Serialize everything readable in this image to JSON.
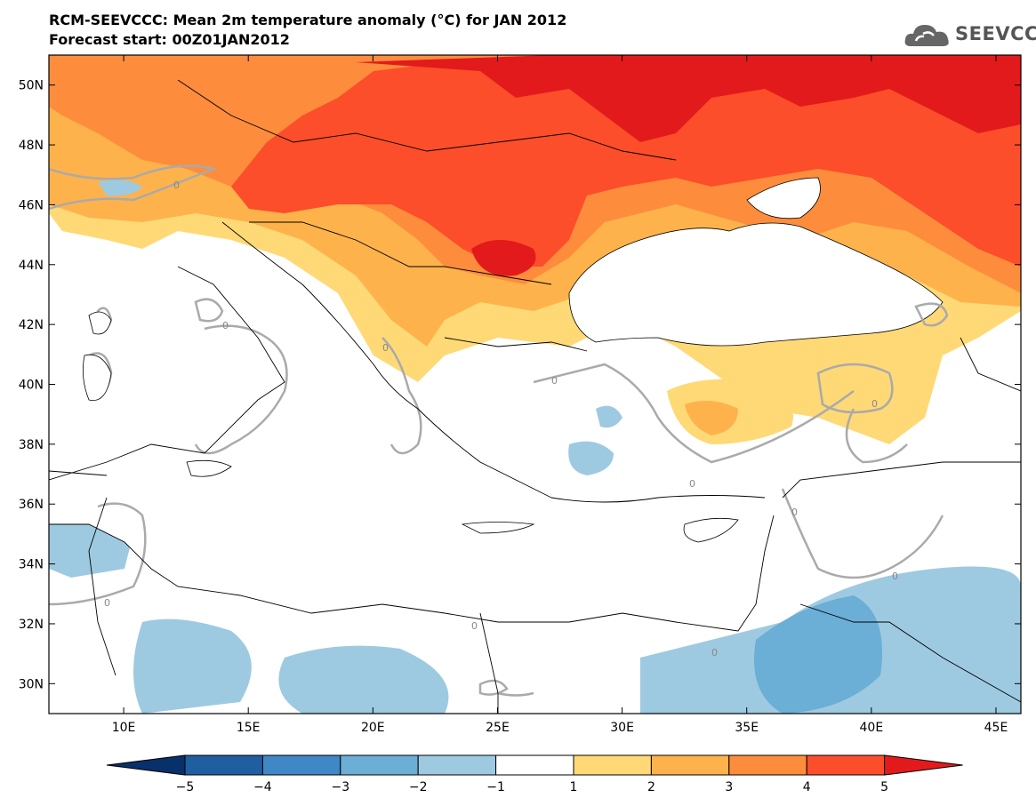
{
  "header": {
    "title_line1": "RCM-SEEVCCC: Mean 2m temperature anomaly (°C) for JAN 2012",
    "title_line2": "Forecast start: 00Z01JAN2012"
  },
  "logo": {
    "text": "SEEVCCC",
    "icon": "cloud-icon"
  },
  "map": {
    "lat_ticks": [
      "50N",
      "48N",
      "46N",
      "44N",
      "42N",
      "40N",
      "38N",
      "36N",
      "34N",
      "32N",
      "30N"
    ],
    "lon_ticks": [
      "10E",
      "15E",
      "20E",
      "25E",
      "30E",
      "35E",
      "40E",
      "45E"
    ],
    "lat_values": [
      50,
      48,
      46,
      44,
      42,
      40,
      38,
      36,
      34,
      32,
      30
    ],
    "lon_values": [
      10,
      15,
      20,
      25,
      30,
      35,
      40,
      45
    ],
    "lat_range": [
      29,
      51
    ],
    "lon_range": [
      7,
      46
    ],
    "contour_label": "0"
  },
  "colorbar": {
    "labels": [
      "−5",
      "−4",
      "−3",
      "−2",
      "−1",
      "1",
      "2",
      "3",
      "4",
      "5"
    ],
    "colors": [
      "#08306b",
      "#1f5fa0",
      "#3f88c5",
      "#6baed6",
      "#9ecae1",
      "#ffffff",
      "#fed976",
      "#feb24c",
      "#fd8d3c",
      "#fc4e2a",
      "#e31a1c"
    ]
  }
}
